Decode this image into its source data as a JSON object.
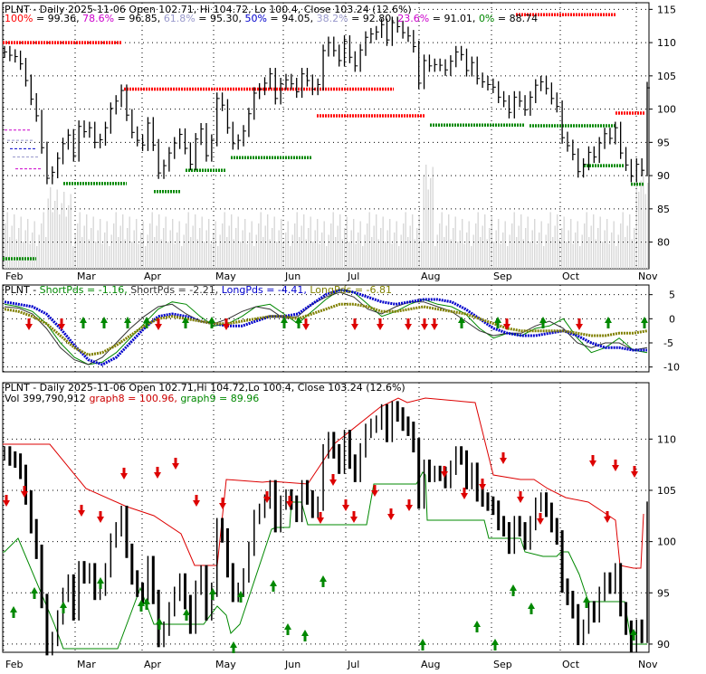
{
  "chart_data": [
    {
      "type": "bar",
      "panel": "price-fib",
      "title": "PLNT - Daily 2025-11-06 Open 102.71, Hi 104.72, Lo 100.4, Close 103.24 (12.6%)",
      "legend": [
        {
          "text": "100%",
          "value": "= 99.36,",
          "color": "#ff0000"
        },
        {
          "text": "78.6%",
          "value": "= 96.85,",
          "color": "#cc00cc"
        },
        {
          "text": "61.8%",
          "value": "= 95.30,",
          "color": "#9999cc"
        },
        {
          "text": "50%",
          "value": "= 94.05,",
          "color": "#0000cc"
        },
        {
          "text": "38.2%",
          "value": "= 92.80,",
          "color": "#9999cc"
        },
        {
          "text": "23.6%",
          "value": "= 91.01,",
          "color": "#cc00cc"
        },
        {
          "text": "0%",
          "value": "= 88.74",
          "color": "#008800"
        }
      ],
      "yticks": [
        "115",
        "110",
        "105",
        "100",
        "95",
        "90",
        "85",
        "80"
      ],
      "ylim": [
        76,
        116
      ],
      "months": [
        "Feb",
        "Mar",
        "Apr",
        "May",
        "Jun",
        "Jul",
        "Aug",
        "Sep",
        "Oct",
        "Nov"
      ],
      "close": [
        108.6,
        108.1,
        107.9,
        106.8,
        104.3,
        101.5,
        99.0,
        94.2,
        89.6,
        90.5,
        92.6,
        94.8,
        96.1,
        93.0,
        97.4,
        96.6,
        97.2,
        95.0,
        95.4,
        97.2,
        100.1,
        101.2,
        102.8,
        99.1,
        96.5,
        95.3,
        94.6,
        97.9,
        94.6,
        90.4,
        91.5,
        93.4,
        94.9,
        96.2,
        94.1,
        91.7,
        95.5,
        97.0,
        93.0,
        95.3,
        101.6,
        100.6,
        97.2,
        94.8,
        95.3,
        96.7,
        99.3,
        102.4,
        103.0,
        103.9,
        105.3,
        101.6,
        103.8,
        104.4,
        103.8,
        102.6,
        105.3,
        104.3,
        103.0,
        103.7,
        108.8,
        110.0,
        108.8,
        107.3,
        110.2,
        107.8,
        106.5,
        108.9,
        110.8,
        111.3,
        111.6,
        112.7,
        110.4,
        113.0,
        112.4,
        111.5,
        111.0,
        109.4,
        103.9,
        107.3,
        106.5,
        106.7,
        106.6,
        105.9,
        107.2,
        108.6,
        108.2,
        105.8,
        107.0,
        104.6,
        104.1,
        103.7,
        103.3,
        101.8,
        101.2,
        99.5,
        101.8,
        101.2,
        99.9,
        101.8,
        103.6,
        104.1,
        103.1,
        101.6,
        100.4,
        95.7,
        94.5,
        93.2,
        90.6,
        91.7,
        93.5,
        92.8,
        94.9,
        96.3,
        95.6,
        97.2,
        93.4,
        91.6,
        89.9,
        91.7,
        90.8,
        103.2
      ],
      "fib_levels": [
        99.36,
        96.85,
        95.3,
        94.05,
        92.8,
        91.01,
        88.74
      ],
      "volume_bars": true
    },
    {
      "type": "line",
      "panel": "shortpds-longpds",
      "title": "PLNT - ShortPds = -1.16, ShortPds = -2.21, LongPds = -4.41, LongPds = -6.81",
      "legend": [
        {
          "text": "ShortPds = -1.16,",
          "color": "#008800"
        },
        {
          "text": "ShortPds = -2.21,",
          "color": "#333333"
        },
        {
          "text": "LongPds = -4.41,",
          "color": "#0000cc"
        },
        {
          "text": "LongPds = -6.81",
          "color": "#808000"
        }
      ],
      "yticks": [
        "5",
        "0",
        "-5",
        "-10"
      ],
      "ylim": [
        -11,
        7
      ],
      "series": [
        {
          "name": "ShortPds",
          "values": [
            3.0,
            2.5,
            1.5,
            -1.0,
            -5.0,
            -8.0,
            -9.5,
            -9.0,
            -7.0,
            -4.0,
            -1.0,
            2.0,
            3.5,
            3.0,
            0.5,
            -1.5,
            -1.0,
            0.5,
            2.5,
            3.0,
            1.0,
            -1.0,
            1.5,
            4.0,
            6.0,
            5.5,
            3.0,
            0.5,
            1.5,
            3.0,
            4.0,
            3.0,
            2.5,
            1.0,
            -2.0,
            -4.0,
            -3.0,
            -3.5,
            -2.0,
            -1.5,
            0.0,
            -4.0,
            -7.0,
            -6.0,
            -4.0,
            -6.5,
            -7.0
          ]
        },
        {
          "name": "ShortPds",
          "values": [
            2.5,
            2.2,
            1.0,
            -2.0,
            -6.0,
            -8.5,
            -9.5,
            -8.0,
            -5.0,
            -2.0,
            0.5,
            2.5,
            3.0,
            1.0,
            -0.5,
            -1.0,
            0.0,
            1.5,
            2.5,
            2.0,
            0.0,
            0.5,
            3.0,
            4.5,
            5.5,
            4.5,
            2.0,
            1.0,
            2.5,
            3.5,
            3.5,
            2.5,
            1.5,
            -0.5,
            -2.5,
            -3.5,
            -3.0,
            -3.0,
            -1.5,
            -0.5,
            -2.0,
            -5.0,
            -6.0,
            -5.0,
            -5.0,
            -6.5,
            -6.0
          ]
        },
        {
          "name": "LongPds",
          "values": [
            3.5,
            3.0,
            2.5,
            1.0,
            -2.0,
            -5.5,
            -8.5,
            -9.5,
            -8.0,
            -5.0,
            -2.0,
            0.5,
            1.0,
            0.5,
            -0.5,
            -1.0,
            -1.5,
            -1.5,
            -0.5,
            0.5,
            0.5,
            1.0,
            3.0,
            5.0,
            6.0,
            5.5,
            4.5,
            3.5,
            3.0,
            3.5,
            4.0,
            4.0,
            3.5,
            2.0,
            0.0,
            -2.0,
            -3.0,
            -3.5,
            -3.5,
            -3.0,
            -2.5,
            -3.5,
            -5.0,
            -6.0,
            -6.0,
            -6.5,
            -6.5
          ]
        },
        {
          "name": "LongPds",
          "values": [
            2.0,
            1.5,
            0.5,
            -1.0,
            -3.5,
            -6.0,
            -7.5,
            -7.0,
            -5.5,
            -3.5,
            -1.5,
            0.0,
            0.5,
            0.0,
            -0.5,
            -1.0,
            -1.0,
            -0.5,
            0.0,
            0.5,
            0.5,
            0.0,
            1.0,
            2.0,
            3.0,
            3.0,
            2.5,
            1.5,
            1.5,
            2.0,
            2.5,
            2.0,
            1.5,
            1.0,
            0.0,
            -1.0,
            -2.0,
            -2.5,
            -2.5,
            -2.5,
            -2.5,
            -3.0,
            -3.5,
            -3.5,
            -3.0,
            -3.0,
            -2.5
          ]
        }
      ],
      "months": [
        "Feb",
        "Mar",
        "Apr",
        "May",
        "Jun",
        "Jul",
        "Aug",
        "Sep",
        "Oct",
        "Nov"
      ]
    },
    {
      "type": "bar",
      "panel": "price-bands",
      "title": "PLNT - Daily 2025-11-06 Open 102.71,Hi 104.72,Lo 100.4, Close 103.24 (12.6%)",
      "legend": [
        {
          "text": "Vol 399,790,912",
          "color": "#000000"
        },
        {
          "text": "graph8 = 100.96,",
          "color": "#cc0000"
        },
        {
          "text": "graph9 = 89.96",
          "color": "#008800"
        }
      ],
      "yticks": [
        "110",
        "105",
        "100",
        "95",
        "90"
      ],
      "ylim": [
        89.2,
        115.5
      ],
      "months": [
        "Feb",
        "Mar",
        "Apr",
        "May",
        "Jun",
        "Jul",
        "Aug",
        "Sep",
        "Oct",
        "Nov"
      ]
    }
  ]
}
